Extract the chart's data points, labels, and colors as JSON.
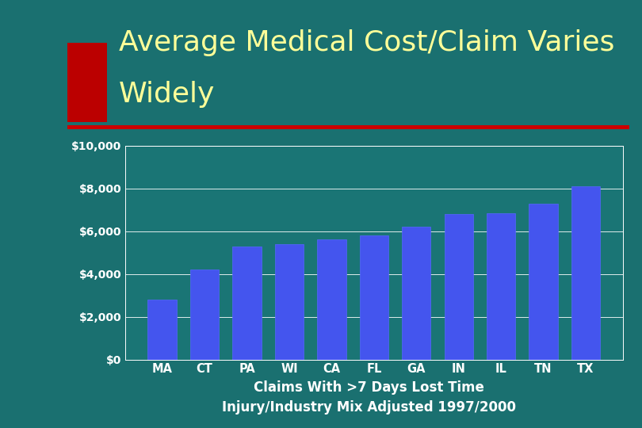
{
  "categories": [
    "MA",
    "CT",
    "PA",
    "WI",
    "CA",
    "FL",
    "GA",
    "IN",
    "IL",
    "TN",
    "TX"
  ],
  "values": [
    2800,
    4200,
    5300,
    5400,
    5600,
    5800,
    6200,
    6800,
    6850,
    7300,
    8100
  ],
  "bar_color": "#4455ee",
  "bar_edge_color": "#5566ff",
  "background_color": "#1a7070",
  "plot_area_color": "#1a7575",
  "grid_color": "#ffffff",
  "title_line1": "Average Medical Cost/Claim Varies",
  "title_line2": "Widely",
  "title_color": "#ffff99",
  "title_fontsize": 26,
  "tick_color": "#ffffff",
  "xlabel_line1": "Claims With >7 Days Lost Time",
  "xlabel_line2": "Injury/Industry Mix Adjusted 1997/2000",
  "xlabel_color": "#ffffff",
  "xlabel_fontsize": 12,
  "red_rect_color": "#bb0000",
  "separator_line_color": "#cc0000",
  "ylim": [
    0,
    10000
  ],
  "yticks": [
    0,
    2000,
    4000,
    6000,
    8000,
    10000
  ],
  "ytick_labels": [
    "$0",
    "$2,000",
    "$4,000",
    "$6,000",
    "$8,000",
    "$10,000"
  ]
}
